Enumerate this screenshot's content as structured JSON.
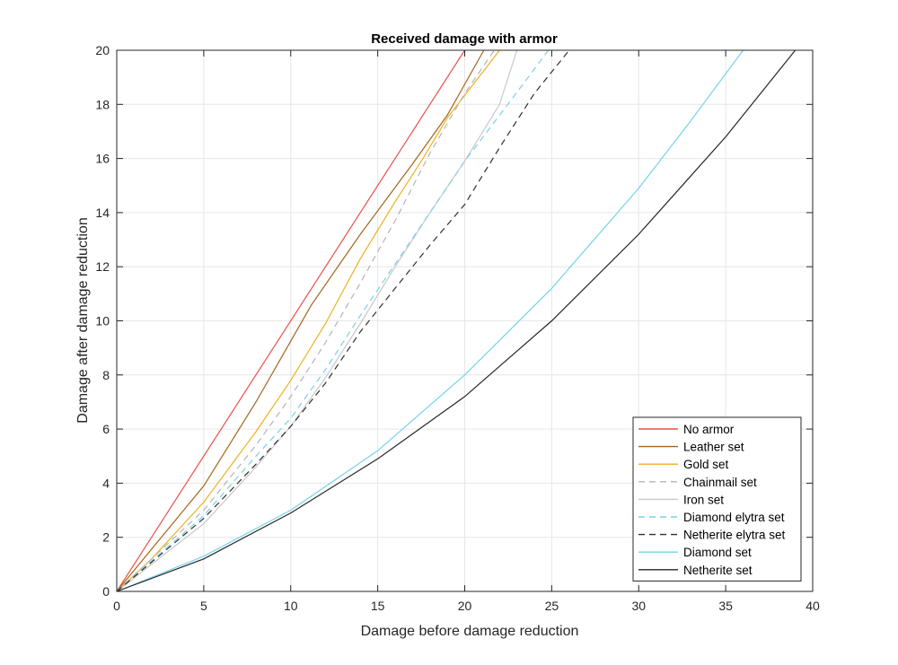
{
  "chart_data": {
    "type": "line",
    "title": "Received damage with armor",
    "xlabel": "Damage before damage reduction",
    "ylabel": "Damage after damage reduction",
    "xlim": [
      0,
      40
    ],
    "ylim": [
      0,
      20
    ],
    "xticks": [
      0,
      5,
      10,
      15,
      20,
      25,
      30,
      35,
      40
    ],
    "yticks": [
      0,
      2,
      4,
      6,
      8,
      10,
      12,
      14,
      16,
      18,
      20
    ],
    "grid": true,
    "legend_position": "bottom-right",
    "series": [
      {
        "name": "No armor",
        "color": "#e8524a",
        "dash": "solid",
        "points": [
          [
            0,
            0
          ],
          [
            20,
            20
          ]
        ]
      },
      {
        "name": "Leather set",
        "color": "#a3651c",
        "dash": "solid",
        "points": [
          [
            0,
            0
          ],
          [
            5,
            3.9
          ],
          [
            8,
            7.0
          ],
          [
            11.2,
            10.6
          ],
          [
            14,
            13.2
          ],
          [
            17,
            15.8
          ],
          [
            19,
            17.6
          ],
          [
            21.1,
            20
          ]
        ]
      },
      {
        "name": "Gold set",
        "color": "#edb120",
        "dash": "solid",
        "points": [
          [
            0,
            0
          ],
          [
            2,
            1.2
          ],
          [
            5,
            3.3
          ],
          [
            8,
            5.9
          ],
          [
            10,
            7.8
          ],
          [
            12,
            9.9
          ],
          [
            14,
            12.3
          ],
          [
            16,
            14.4
          ],
          [
            17.6,
            16
          ],
          [
            19,
            17.5
          ],
          [
            22,
            20
          ]
        ]
      },
      {
        "name": "Chainmail set",
        "color": "#b4b4b4",
        "dash": "dashed",
        "points": [
          [
            0,
            0
          ],
          [
            5,
            3.0
          ],
          [
            8,
            5.4
          ],
          [
            10,
            7.2
          ],
          [
            12,
            9.2
          ],
          [
            14,
            11.4
          ],
          [
            16,
            13.7
          ],
          [
            18,
            16.2
          ],
          [
            20,
            18.4
          ],
          [
            21.7,
            20
          ]
        ]
      },
      {
        "name": "Iron set",
        "color": "#c8c8c8",
        "dash": "solid",
        "points": [
          [
            0,
            0
          ],
          [
            5,
            2.5
          ],
          [
            8,
            4.6
          ],
          [
            10,
            6.1
          ],
          [
            12,
            7.9
          ],
          [
            14,
            9.9
          ],
          [
            16,
            12.0
          ],
          [
            18,
            14.0
          ],
          [
            20,
            15.9
          ],
          [
            22,
            18.0
          ],
          [
            23,
            20
          ]
        ]
      },
      {
        "name": "Diamond elytra set",
        "color": "#75d2ec",
        "dash": "dashed",
        "points": [
          [
            0,
            0
          ],
          [
            5,
            2.8
          ],
          [
            8,
            5.0
          ],
          [
            10,
            6.4
          ],
          [
            12,
            8.2
          ],
          [
            14,
            10.2
          ],
          [
            16,
            12.1
          ],
          [
            18,
            14.0
          ],
          [
            20,
            15.9
          ],
          [
            22,
            17.6
          ],
          [
            24,
            19.3
          ],
          [
            24.8,
            20
          ]
        ]
      },
      {
        "name": "Netherite elytra set",
        "color": "#303030",
        "dash": "dashed",
        "points": [
          [
            0,
            0
          ],
          [
            5,
            2.7
          ],
          [
            8,
            4.7
          ],
          [
            10,
            6.1
          ],
          [
            12,
            7.7
          ],
          [
            14,
            9.6
          ],
          [
            16,
            11.2
          ],
          [
            18,
            12.8
          ],
          [
            20,
            14.3
          ],
          [
            22,
            16.4
          ],
          [
            24,
            18.4
          ],
          [
            26,
            20
          ]
        ]
      },
      {
        "name": "Diamond set",
        "color": "#75d2ec",
        "dash": "solid",
        "points": [
          [
            0,
            0
          ],
          [
            5,
            1.3
          ],
          [
            10,
            3.0
          ],
          [
            15,
            5.2
          ],
          [
            20,
            8.0
          ],
          [
            25,
            11.2
          ],
          [
            30,
            14.9
          ],
          [
            33,
            17.4
          ],
          [
            36,
            20
          ]
        ]
      },
      {
        "name": "Netherite set",
        "color": "#262626",
        "dash": "solid",
        "points": [
          [
            0,
            0
          ],
          [
            5,
            1.2
          ],
          [
            10,
            2.9
          ],
          [
            15,
            4.9
          ],
          [
            20,
            7.2
          ],
          [
            25,
            10.0
          ],
          [
            30,
            13.2
          ],
          [
            35,
            16.8
          ],
          [
            39,
            20
          ]
        ]
      }
    ]
  }
}
